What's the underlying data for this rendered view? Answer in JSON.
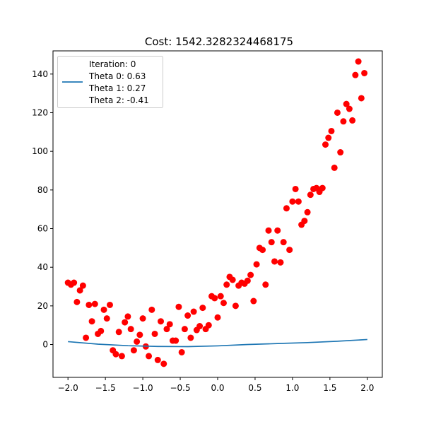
{
  "chart_data": {
    "type": "scatter",
    "title": "Cost: 1542.3282324468175",
    "xlabel": "",
    "ylabel": "",
    "xlim": [
      -2.2,
      2.2
    ],
    "ylim": [
      -17,
      152
    ],
    "x_ticks": [
      -2.0,
      -1.5,
      -1.0,
      -0.5,
      0.0,
      0.5,
      1.0,
      1.5,
      2.0
    ],
    "x_tick_labels": [
      "−2.0",
      "−1.5",
      "−1.0",
      "−0.5",
      "0.0",
      "0.5",
      "1.0",
      "1.5",
      "2.0"
    ],
    "y_ticks": [
      0,
      20,
      40,
      60,
      80,
      100,
      120,
      140
    ],
    "y_tick_labels": [
      "0",
      "20",
      "40",
      "60",
      "80",
      "100",
      "120",
      "140"
    ],
    "grid": false,
    "legend": {
      "placement": "top-left",
      "lines": [
        "Iteration: 0",
        "Theta 0: 0.63",
        "Theta 1: 0.27",
        "Theta 2: -0.41"
      ]
    },
    "colors": {
      "points": "#ff0000",
      "line": "#1f77b4"
    },
    "model_line": {
      "theta0": 0.63,
      "theta1": 0.27,
      "theta2": -0.41,
      "x": [
        -2.0,
        -1.6,
        -1.2,
        -0.8,
        -0.4,
        0.0,
        0.4,
        0.8,
        1.2,
        1.6,
        2.0
      ],
      "y": [
        1.5,
        0.2,
        -0.6,
        -1.0,
        -1.1,
        -0.7,
        0.0,
        0.5,
        1.0,
        1.7,
        2.6
      ]
    },
    "points": [
      {
        "x": -2.0,
        "y": 32.0
      },
      {
        "x": -1.96,
        "y": 31.0
      },
      {
        "x": -1.92,
        "y": 32.0
      },
      {
        "x": -1.88,
        "y": 22.0
      },
      {
        "x": -1.84,
        "y": 28.0
      },
      {
        "x": -1.8,
        "y": 30.5
      },
      {
        "x": -1.76,
        "y": 3.5
      },
      {
        "x": -1.72,
        "y": 20.5
      },
      {
        "x": -1.68,
        "y": 12.0
      },
      {
        "x": -1.64,
        "y": 21.0
      },
      {
        "x": -1.6,
        "y": 5.5
      },
      {
        "x": -1.56,
        "y": 7.0
      },
      {
        "x": -1.52,
        "y": 18.0
      },
      {
        "x": -1.48,
        "y": 13.5
      },
      {
        "x": -1.44,
        "y": 20.5
      },
      {
        "x": -1.4,
        "y": -3.0
      },
      {
        "x": -1.36,
        "y": -5.0
      },
      {
        "x": -1.32,
        "y": 6.5
      },
      {
        "x": -1.28,
        "y": -6.0
      },
      {
        "x": -1.24,
        "y": 11.5
      },
      {
        "x": -1.2,
        "y": 14.5
      },
      {
        "x": -1.16,
        "y": 8.0
      },
      {
        "x": -1.12,
        "y": -3.0
      },
      {
        "x": -1.08,
        "y": 1.5
      },
      {
        "x": -1.04,
        "y": 5.0
      },
      {
        "x": -1.0,
        "y": 13.5
      },
      {
        "x": -0.96,
        "y": -1.0
      },
      {
        "x": -0.92,
        "y": -6.0
      },
      {
        "x": -0.88,
        "y": 18.0
      },
      {
        "x": -0.84,
        "y": 5.5
      },
      {
        "x": -0.8,
        "y": -8.0
      },
      {
        "x": -0.76,
        "y": 12.0
      },
      {
        "x": -0.72,
        "y": -10.0
      },
      {
        "x": -0.68,
        "y": 8.0
      },
      {
        "x": -0.64,
        "y": 10.5
      },
      {
        "x": -0.6,
        "y": 2.0
      },
      {
        "x": -0.56,
        "y": 2.0
      },
      {
        "x": -0.52,
        "y": 19.5
      },
      {
        "x": -0.48,
        "y": -4.0
      },
      {
        "x": -0.44,
        "y": 8.0
      },
      {
        "x": -0.4,
        "y": 15.0
      },
      {
        "x": -0.36,
        "y": 3.5
      },
      {
        "x": -0.32,
        "y": 17.0
      },
      {
        "x": -0.28,
        "y": 7.5
      },
      {
        "x": -0.24,
        "y": 9.5
      },
      {
        "x": -0.2,
        "y": 19.0
      },
      {
        "x": -0.16,
        "y": 8.0
      },
      {
        "x": -0.12,
        "y": 10.0
      },
      {
        "x": -0.08,
        "y": 25.0
      },
      {
        "x": -0.04,
        "y": 24.0
      },
      {
        "x": 0.0,
        "y": 14.0
      },
      {
        "x": 0.04,
        "y": 25.0
      },
      {
        "x": 0.08,
        "y": 21.5
      },
      {
        "x": 0.12,
        "y": 31.0
      },
      {
        "x": 0.16,
        "y": 35.0
      },
      {
        "x": 0.2,
        "y": 33.5
      },
      {
        "x": 0.24,
        "y": 20.0
      },
      {
        "x": 0.28,
        "y": 30.5
      },
      {
        "x": 0.32,
        "y": 32.0
      },
      {
        "x": 0.36,
        "y": 31.5
      },
      {
        "x": 0.4,
        "y": 33.0
      },
      {
        "x": 0.44,
        "y": 36.0
      },
      {
        "x": 0.48,
        "y": 22.5
      },
      {
        "x": 0.52,
        "y": 41.5
      },
      {
        "x": 0.56,
        "y": 50.0
      },
      {
        "x": 0.6,
        "y": 49.0
      },
      {
        "x": 0.64,
        "y": 31.0
      },
      {
        "x": 0.68,
        "y": 59.0
      },
      {
        "x": 0.72,
        "y": 53.0
      },
      {
        "x": 0.76,
        "y": 43.0
      },
      {
        "x": 0.8,
        "y": 59.0
      },
      {
        "x": 0.84,
        "y": 42.5
      },
      {
        "x": 0.88,
        "y": 53.0
      },
      {
        "x": 0.92,
        "y": 70.5
      },
      {
        "x": 0.96,
        "y": 49.0
      },
      {
        "x": 1.0,
        "y": 74.0
      },
      {
        "x": 1.04,
        "y": 80.5
      },
      {
        "x": 1.08,
        "y": 74.0
      },
      {
        "x": 1.12,
        "y": 62.0
      },
      {
        "x": 1.16,
        "y": 64.0
      },
      {
        "x": 1.2,
        "y": 68.5
      },
      {
        "x": 1.24,
        "y": 77.5
      },
      {
        "x": 1.28,
        "y": 80.5
      },
      {
        "x": 1.32,
        "y": 81.0
      },
      {
        "x": 1.36,
        "y": 79.0
      },
      {
        "x": 1.4,
        "y": 81.0
      },
      {
        "x": 1.44,
        "y": 103.5
      },
      {
        "x": 1.48,
        "y": 107.0
      },
      {
        "x": 1.52,
        "y": 110.5
      },
      {
        "x": 1.56,
        "y": 91.5
      },
      {
        "x": 1.6,
        "y": 120.0
      },
      {
        "x": 1.64,
        "y": 99.5
      },
      {
        "x": 1.68,
        "y": 115.5
      },
      {
        "x": 1.72,
        "y": 124.5
      },
      {
        "x": 1.76,
        "y": 122.0
      },
      {
        "x": 1.8,
        "y": 116.0
      },
      {
        "x": 1.84,
        "y": 139.5
      },
      {
        "x": 1.88,
        "y": 146.5
      },
      {
        "x": 1.92,
        "y": 127.5
      },
      {
        "x": 1.96,
        "y": 140.5
      }
    ]
  }
}
